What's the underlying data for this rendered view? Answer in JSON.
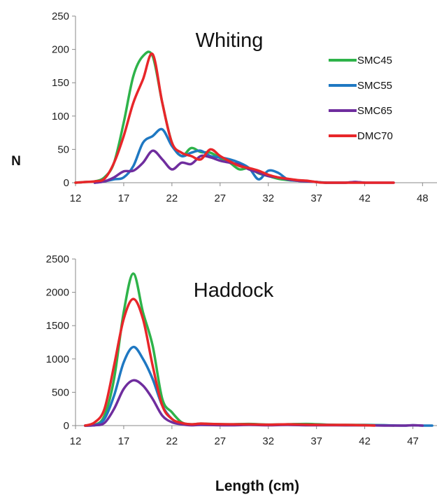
{
  "ylabel": "N",
  "xlabel": "Length (cm)",
  "colors": {
    "SMC45": "#2eb34a",
    "SMC55": "#1f78c2",
    "SMC65": "#6f2d9e",
    "DMC70": "#e8262a"
  },
  "chart_data": [
    {
      "type": "line",
      "title": "Whiting",
      "xlim": [
        12,
        49.5
      ],
      "ylim": [
        0,
        250
      ],
      "x_ticks": [
        "12",
        "17",
        "22",
        "27",
        "32",
        "37",
        "42",
        "48"
      ],
      "y_ticks": [
        "0",
        "50",
        "100",
        "150",
        "200",
        "250"
      ],
      "legend_position": "right",
      "series": [
        {
          "name": "SMC45",
          "x": [
            12,
            13,
            14,
            15,
            16,
            17,
            18,
            19,
            20,
            21,
            22,
            23,
            24,
            25,
            26,
            27,
            28,
            29,
            30,
            31,
            32,
            33,
            34,
            35,
            36,
            37,
            38
          ],
          "y": [
            0,
            1,
            2,
            8,
            30,
            90,
            160,
            190,
            190,
            120,
            60,
            40,
            52,
            46,
            45,
            37,
            30,
            20,
            22,
            14,
            10,
            6,
            4,
            3,
            2,
            1,
            0
          ]
        },
        {
          "name": "SMC55",
          "x": [
            14,
            15,
            16,
            17,
            18,
            19,
            20,
            21,
            22,
            23,
            24,
            25,
            26,
            27,
            28,
            29,
            30,
            31,
            32,
            33,
            34,
            35,
            36,
            37,
            38,
            40,
            41,
            42
          ],
          "y": [
            0,
            2,
            5,
            8,
            25,
            60,
            70,
            80,
            55,
            40,
            45,
            48,
            40,
            38,
            35,
            30,
            22,
            5,
            18,
            15,
            5,
            3,
            2,
            1,
            0,
            0,
            1,
            0
          ]
        },
        {
          "name": "SMC65",
          "x": [
            14,
            15,
            16,
            17,
            18,
            19,
            20,
            21,
            22,
            23,
            24,
            25,
            26,
            27,
            28,
            29,
            30,
            31,
            32,
            33,
            34,
            35,
            36,
            37,
            38,
            40,
            41,
            42,
            44,
            45
          ],
          "y": [
            0,
            2,
            8,
            17,
            18,
            30,
            48,
            35,
            20,
            30,
            28,
            40,
            38,
            33,
            30,
            27,
            20,
            15,
            10,
            8,
            5,
            3,
            2,
            1,
            0,
            0,
            1,
            0,
            0,
            0
          ]
        },
        {
          "name": "DMC70",
          "x": [
            12,
            13,
            14,
            15,
            16,
            17,
            18,
            19,
            20,
            21,
            22,
            23,
            24,
            25,
            26,
            27,
            28,
            29,
            30,
            31,
            32,
            33,
            34,
            35,
            36,
            37,
            38,
            43,
            44,
            45
          ],
          "y": [
            0,
            1,
            2,
            6,
            30,
            70,
            120,
            155,
            193,
            120,
            60,
            45,
            40,
            35,
            50,
            40,
            32,
            25,
            22,
            18,
            12,
            8,
            6,
            4,
            3,
            1,
            0,
            0,
            0,
            0
          ]
        }
      ]
    },
    {
      "type": "line",
      "title": "Haddock",
      "xlim": [
        12,
        49.5
      ],
      "ylim": [
        0,
        2500
      ],
      "x_ticks": [
        "12",
        "17",
        "22",
        "27",
        "32",
        "37",
        "42",
        "47"
      ],
      "y_ticks": [
        "0",
        "500",
        "1000",
        "1500",
        "2000",
        "2500"
      ],
      "series": [
        {
          "name": "SMC45",
          "x": [
            13,
            14,
            15,
            16,
            17,
            18,
            19,
            20,
            21,
            22,
            23,
            24,
            25,
            26,
            28,
            30,
            32,
            34,
            36,
            38,
            40,
            42,
            44,
            45
          ],
          "y": [
            0,
            10,
            150,
            700,
            1700,
            2280,
            1700,
            1200,
            400,
            200,
            50,
            20,
            30,
            25,
            20,
            25,
            15,
            20,
            25,
            15,
            10,
            10,
            5,
            0
          ]
        },
        {
          "name": "SMC55",
          "x": [
            13,
            14,
            15,
            16,
            17,
            18,
            19,
            20,
            21,
            22,
            23,
            24,
            25,
            28,
            30,
            32,
            34,
            36,
            38,
            40,
            42,
            44,
            46,
            47,
            48,
            49
          ],
          "y": [
            0,
            5,
            100,
            450,
            950,
            1180,
            1000,
            700,
            300,
            100,
            30,
            10,
            15,
            10,
            15,
            10,
            15,
            10,
            10,
            5,
            5,
            5,
            0,
            5,
            0,
            0
          ]
        },
        {
          "name": "SMC65",
          "x": [
            13,
            14,
            15,
            16,
            17,
            18,
            19,
            20,
            21,
            22,
            23,
            24,
            25,
            28,
            30,
            32,
            34,
            36,
            38,
            40,
            42,
            44,
            46,
            47,
            48
          ],
          "y": [
            0,
            5,
            40,
            250,
            550,
            680,
            600,
            400,
            150,
            50,
            20,
            5,
            10,
            5,
            10,
            5,
            10,
            5,
            5,
            5,
            5,
            0,
            0,
            5,
            0
          ]
        },
        {
          "name": "DMC70",
          "x": [
            13,
            14,
            15,
            16,
            17,
            18,
            19,
            20,
            21,
            22,
            23,
            24,
            25,
            26,
            28,
            30,
            32,
            34,
            36,
            38,
            40,
            42,
            43
          ],
          "y": [
            0,
            50,
            250,
            900,
            1600,
            1900,
            1600,
            900,
            300,
            100,
            40,
            20,
            30,
            25,
            20,
            20,
            15,
            20,
            15,
            10,
            10,
            5,
            0
          ]
        }
      ]
    }
  ]
}
